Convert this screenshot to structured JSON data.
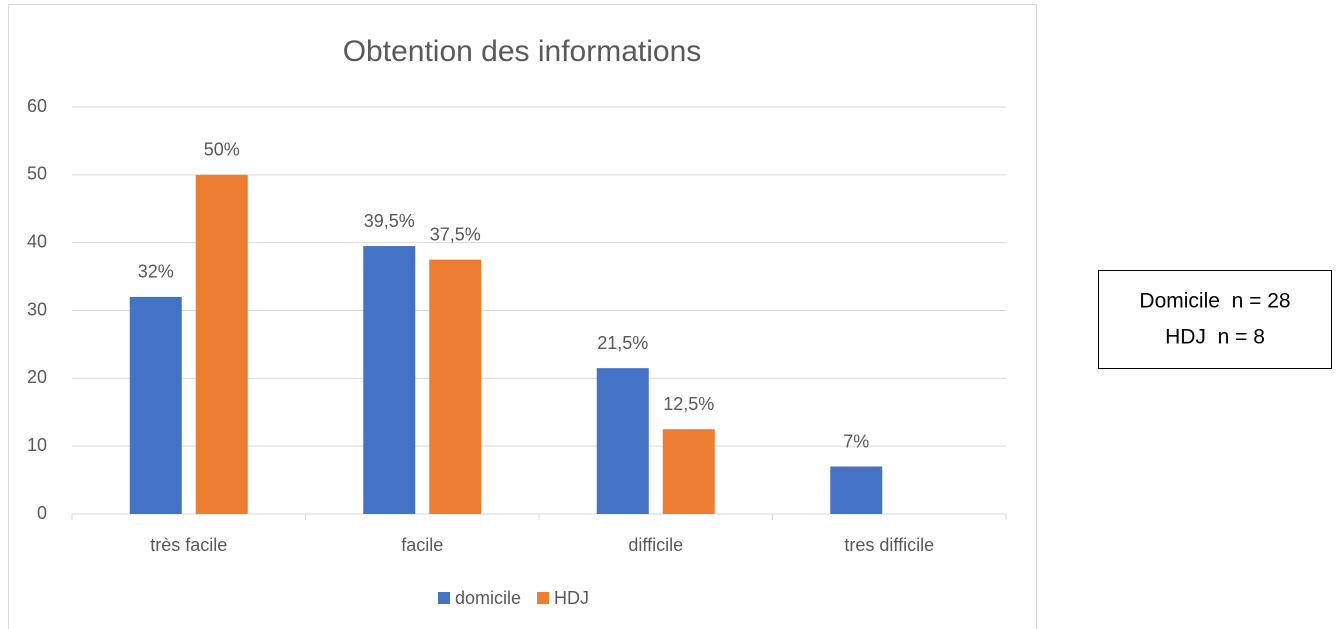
{
  "chart_data": {
    "type": "bar",
    "title": "Obtention des informations",
    "categories": [
      "très facile",
      "facile",
      "difficile",
      "tres difficile"
    ],
    "series": [
      {
        "name": "domicile",
        "color": "#4472c4",
        "values": [
          32,
          39.5,
          21.5,
          7
        ],
        "value_labels": [
          "32%",
          "39,5%",
          "21,5%",
          "7%"
        ]
      },
      {
        "name": "HDJ",
        "color": "#ed7d31",
        "values": [
          50,
          37.5,
          12.5,
          null
        ],
        "value_labels": [
          "50%",
          "37,5%",
          "12,5%",
          null
        ]
      }
    ],
    "ylim": [
      0,
      60
    ],
    "yticks": [
      0,
      10,
      20,
      30,
      40,
      50,
      60
    ],
    "grid": true,
    "legend": "bottom",
    "annotations": [
      "Domicile  n = 28",
      "HDJ  n = 8"
    ]
  }
}
